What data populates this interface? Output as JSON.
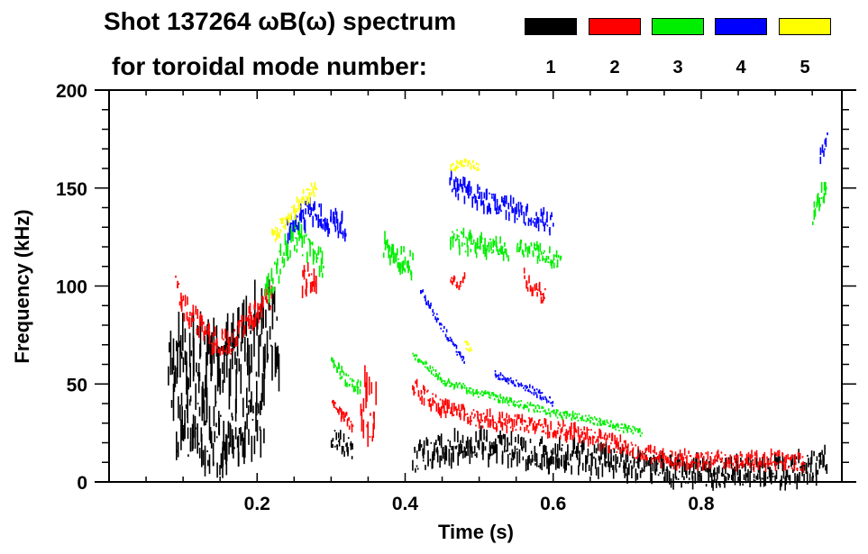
{
  "chart_data": {
    "type": "heatmap",
    "title_line1": "Shot 137264 ωB(ω) spectrum",
    "title_line2": "for toroidal mode number:",
    "xlabel": "Time (s)",
    "ylabel": "Frequency (kHz)",
    "xlim": [
      0.0,
      0.99
    ],
    "ylim": [
      0,
      200
    ],
    "xticks": [
      0.2,
      0.4,
      0.6,
      0.8
    ],
    "xtick_labels": [
      "0.2",
      "0.4",
      "0.6",
      "0.8"
    ],
    "yticks": [
      0,
      50,
      100,
      150,
      200
    ],
    "ytick_labels": [
      "0",
      "50",
      "100",
      "150",
      "200"
    ],
    "legend_placement": "top-right",
    "legend": [
      {
        "label": "1",
        "color": "#000000"
      },
      {
        "label": "2",
        "color": "#ff0000"
      },
      {
        "label": "3",
        "color": "#00ee00"
      },
      {
        "label": "4",
        "color": "#0000ff"
      },
      {
        "label": "5",
        "color": "#ffff00"
      }
    ],
    "series": [
      {
        "name": "1",
        "color": "#000000",
        "ridges": [
          {
            "t": [
              0.08,
              0.1,
              0.12,
              0.14,
              0.16,
              0.18,
              0.2,
              0.22,
              0.23
            ],
            "f": [
              58,
              62,
              58,
              55,
              60,
              68,
              75,
              78,
              72
            ],
            "spread": 20
          },
          {
            "t": [
              0.09,
              0.12,
              0.15,
              0.18,
              0.21
            ],
            "f": [
              30,
              25,
              20,
              28,
              35
            ],
            "spread": 15
          },
          {
            "t": [
              0.3,
              0.31,
              0.32,
              0.33
            ],
            "f": [
              22,
              20,
              18,
              17
            ],
            "spread": 5
          },
          {
            "t": [
              0.41,
              0.45,
              0.5,
              0.55,
              0.6,
              0.65,
              0.7,
              0.75,
              0.8,
              0.85,
              0.9,
              0.95,
              0.97
            ],
            "f": [
              12,
              17,
              18,
              16,
              14,
              12,
              9,
              6,
              5,
              5,
              5,
              7,
              12
            ],
            "spread": 7
          }
        ]
      },
      {
        "name": "2",
        "color": "#ff0000",
        "ridges": [
          {
            "t": [
              0.09,
              0.1,
              0.12,
              0.14,
              0.16,
              0.18,
              0.2,
              0.22
            ],
            "f": [
              100,
              90,
              80,
              72,
              70,
              78,
              88,
              95
            ],
            "spread": 6
          },
          {
            "t": [
              0.26,
              0.27,
              0.28
            ],
            "f": [
              100,
              105,
              100
            ],
            "spread": 8
          },
          {
            "t": [
              0.3,
              0.31,
              0.32,
              0.33
            ],
            "f": [
              40,
              36,
              32,
              28
            ],
            "spread": 3
          },
          {
            "t": [
              0.34,
              0.35,
              0.36
            ],
            "f": [
              45,
              35,
              30
            ],
            "spread": 15
          },
          {
            "t": [
              0.41,
              0.45,
              0.5,
              0.55,
              0.6,
              0.65,
              0.7,
              0.75,
              0.8,
              0.85,
              0.9,
              0.94
            ],
            "f": [
              48,
              38,
              32,
              30,
              27,
              23,
              17,
              12,
              11,
              11,
              11,
              10
            ],
            "spread": 4
          },
          {
            "t": [
              0.46,
              0.47,
              0.48
            ],
            "f": [
              104,
              102,
              103
            ],
            "spread": 3
          },
          {
            "t": [
              0.56,
              0.57,
              0.58,
              0.59
            ],
            "f": [
              105,
              100,
              96,
              95
            ],
            "spread": 4
          }
        ]
      },
      {
        "name": "3",
        "color": "#00ee00",
        "ridges": [
          {
            "t": [
              0.21,
              0.23,
              0.25,
              0.27,
              0.29
            ],
            "f": [
              95,
              112,
              125,
              120,
              110
            ],
            "spread": 7
          },
          {
            "t": [
              0.3,
              0.32,
              0.34
            ],
            "f": [
              60,
              52,
              48
            ],
            "spread": 3
          },
          {
            "t": [
              0.37,
              0.39,
              0.41
            ],
            "f": [
              120,
              115,
              110
            ],
            "spread": 6
          },
          {
            "t": [
              0.41,
              0.45,
              0.5,
              0.55,
              0.6,
              0.65,
              0.7,
              0.72
            ],
            "f": [
              65,
              52,
              45,
              40,
              35,
              32,
              27,
              25
            ],
            "spread": 2
          },
          {
            "t": [
              0.46,
              0.5,
              0.54
            ],
            "f": [
              125,
              120,
              118
            ],
            "spread": 5
          },
          {
            "t": [
              0.55,
              0.58,
              0.61
            ],
            "f": [
              120,
              117,
              113
            ],
            "spread": 4
          },
          {
            "t": [
              0.95,
              0.96,
              0.97
            ],
            "f": [
              135,
              145,
              155
            ],
            "spread": 5
          }
        ]
      },
      {
        "name": "4",
        "color": "#0000ff",
        "ridges": [
          {
            "t": [
              0.24,
              0.27,
              0.29,
              0.32
            ],
            "f": [
              130,
              138,
              135,
              130
            ],
            "spread": 6
          },
          {
            "t": [
              0.42,
              0.44,
              0.46,
              0.48
            ],
            "f": [
              98,
              85,
              72,
              60
            ],
            "spread": 2
          },
          {
            "t": [
              0.46,
              0.5,
              0.55,
              0.6
            ],
            "f": [
              152,
              145,
              138,
              132
            ],
            "spread": 5
          },
          {
            "t": [
              0.52,
              0.55,
              0.58,
              0.6
            ],
            "f": [
              55,
              50,
              45,
              40
            ],
            "spread": 2
          },
          {
            "t": [
              0.96,
              0.97
            ],
            "f": [
              165,
              175
            ],
            "spread": 4
          }
        ]
      },
      {
        "name": "5",
        "color": "#ffff00",
        "ridges": [
          {
            "t": [
              0.22,
              0.24,
              0.26,
              0.28
            ],
            "f": [
              125,
              135,
              145,
              150
            ],
            "spread": 4
          },
          {
            "t": [
              0.46,
              0.48,
              0.5
            ],
            "f": [
              160,
              163,
              160
            ],
            "spread": 2
          },
          {
            "t": [
              0.48,
              0.49
            ],
            "f": [
              70,
              68
            ],
            "spread": 2
          }
        ]
      }
    ]
  }
}
